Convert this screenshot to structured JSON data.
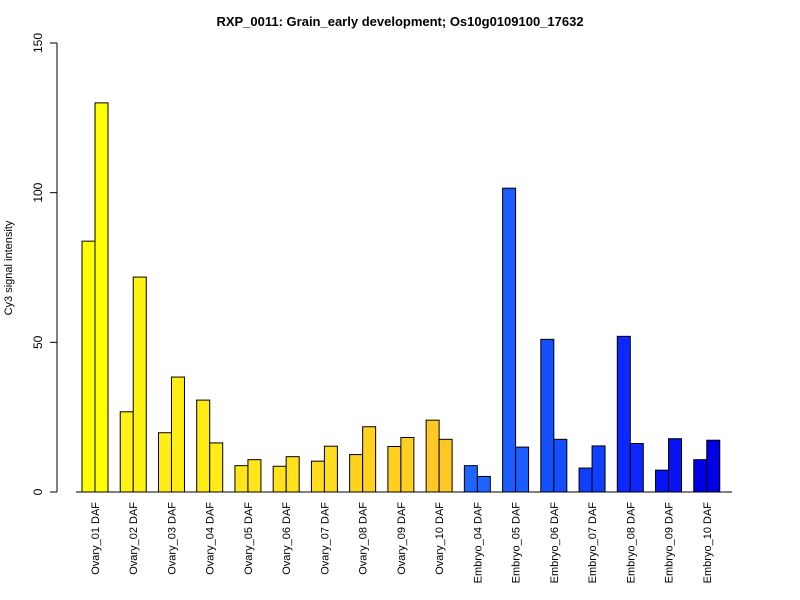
{
  "chart_data": {
    "type": "bar",
    "title": "RXP_0011: Grain_early development; Os10g0109100_17632",
    "xlabel": "",
    "ylabel": "Cy3 signal intensity",
    "ylim": [
      0,
      150
    ],
    "yticks": [
      0,
      50,
      100,
      150
    ],
    "categories": [
      "Ovary_01 DAF",
      "Ovary_02 DAF",
      "Ovary_03 DAF",
      "Ovary_04 DAF",
      "Ovary_05 DAF",
      "Ovary_06 DAF",
      "Ovary_07 DAF",
      "Ovary_08 DAF",
      "Ovary_09 DAF",
      "Ovary_10 DAF",
      "Embryo_04 DAF",
      "Embryo_05 DAF",
      "Embryo_06 DAF",
      "Embryo_07 DAF",
      "Embryo_08 DAF",
      "Embryo_09 DAF",
      "Embryo_10 DAF"
    ],
    "colors": [
      "#ffff00",
      "#fff212",
      "#ffed14",
      "#ffeb16",
      "#ffe61a",
      "#ffe21c",
      "#ffdc1e",
      "#ffd21f",
      "#ffcf22",
      "#ffc825",
      "#1e64ff",
      "#1a5cff",
      "#1450ff",
      "#1040ff",
      "#0a28ff",
      "#0614f5",
      "#0000e6"
    ],
    "series": [
      {
        "values": [
          83.8,
          26.8,
          19.8,
          30.7,
          8.8,
          8.6,
          10.3,
          12.5,
          15.2,
          24.0,
          8.8,
          101.5,
          51.0,
          8.0,
          52.0,
          7.3,
          10.8
        ]
      },
      {
        "values": [
          130.0,
          71.8,
          38.4,
          16.4,
          10.8,
          11.8,
          15.3,
          21.8,
          18.2,
          17.6,
          5.2,
          15.0,
          17.6,
          15.4,
          16.2,
          17.8,
          17.3
        ]
      }
    ],
    "grid": false,
    "legend": "none"
  }
}
